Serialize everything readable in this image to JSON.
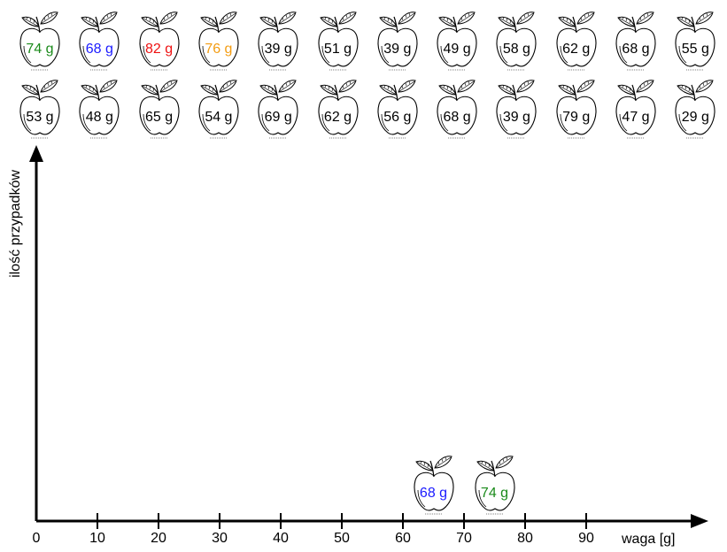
{
  "apples_row1": [
    {
      "label": "74 g",
      "color": "#1a8a1a"
    },
    {
      "label": "68 g",
      "color": "#1a1aff"
    },
    {
      "label": "82 g",
      "color": "#ee1111"
    },
    {
      "label": "76 g",
      "color": "#f39c12"
    },
    {
      "label": "39 g",
      "color": "#000000"
    },
    {
      "label": "51 g",
      "color": "#000000"
    },
    {
      "label": "39 g",
      "color": "#000000"
    },
    {
      "label": "49 g",
      "color": "#000000"
    },
    {
      "label": "58 g",
      "color": "#000000"
    },
    {
      "label": "62 g",
      "color": "#000000"
    },
    {
      "label": "68 g",
      "color": "#000000"
    },
    {
      "label": "55 g",
      "color": "#000000"
    }
  ],
  "apples_row2": [
    {
      "label": "53 g",
      "color": "#000000"
    },
    {
      "label": "48 g",
      "color": "#000000"
    },
    {
      "label": "65 g",
      "color": "#000000"
    },
    {
      "label": "54 g",
      "color": "#000000"
    },
    {
      "label": "69 g",
      "color": "#000000"
    },
    {
      "label": "62 g",
      "color": "#000000"
    },
    {
      "label": "56 g",
      "color": "#000000"
    },
    {
      "label": "68 g",
      "color": "#000000"
    },
    {
      "label": "39 g",
      "color": "#000000"
    },
    {
      "label": "79 g",
      "color": "#000000"
    },
    {
      "label": "47 g",
      "color": "#000000"
    },
    {
      "label": "29 g",
      "color": "#000000"
    }
  ],
  "placed_apples": [
    {
      "label": "68 g",
      "color": "#1a1aff",
      "value": 68
    },
    {
      "label": "74 g",
      "color": "#1a8a1a",
      "value": 74
    }
  ],
  "axis": {
    "x_label": "waga [g]",
    "y_label": "ilość przypadków",
    "ticks": [
      "0",
      "10",
      "20",
      "30",
      "40",
      "50",
      "60",
      "70",
      "80",
      "90"
    ]
  },
  "icon": "apple-icon"
}
